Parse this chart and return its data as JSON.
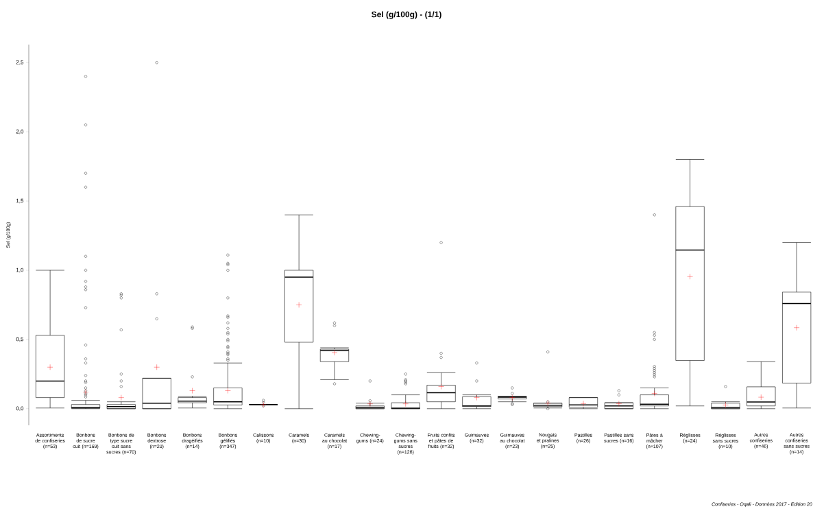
{
  "chart_data": {
    "type": "box",
    "title": "Sel (g/100g) - (1/1)",
    "ylabel": "Sel (g/100g)",
    "categories": [
      "Assortiments de confiseries (n=53)",
      "Bonbons de sucre cuit (n=169)",
      "Bonbons de type sucre cuit sans sucres (n=70)",
      "Bonbons dextrose (n=20)",
      "Bonbons dragéifiés (n=14)",
      "Bonbons gélifiés (n=347)",
      "Calissons (n=10)",
      "Caramels (n=30)",
      "Caramels au chocolat (n=17)",
      "Chewing-gums (n=24)",
      "Chewing-gums sans sucres (n=126)",
      "Fruits confits et pâtes de fruits (n=32)",
      "Guimauves (n=32)",
      "Guimauves au chocolat (n=23)",
      "Nougats et pralines (n=25)",
      "Pastilles (n=26)",
      "Pastilles sans sucres (n=16)",
      "Pâtes à mâcher (n=107)",
      "Réglisses (n=24)",
      "Réglisses sans sucres (n=10)",
      "Autres confiseries (n=46)",
      "Autres confiseries sans sucres (n=14)"
    ],
    "color": "#000000",
    "boxes": [
      {
        "low": 0.005,
        "q1": 0.08,
        "median": 0.2,
        "q3": 0.53,
        "high": 1.0,
        "mean": 0.3
      },
      {
        "low": 0.0,
        "q1": 0.003,
        "median": 0.01,
        "q3": 0.03,
        "high": 0.06,
        "mean": 0.12,
        "outliers": [
          2.4,
          2.05,
          1.7,
          1.6,
          1.1,
          1.0,
          0.92,
          0.88,
          0.86,
          0.73,
          0.46,
          0.36,
          0.33,
          0.24,
          0.2,
          0.19,
          0.15,
          0.13,
          0.11,
          0.1,
          0.085
        ]
      },
      {
        "low": 0.0,
        "q1": 0.0,
        "median": 0.015,
        "q3": 0.03,
        "high": 0.05,
        "mean": 0.08,
        "outliers": [
          0.83,
          0.82,
          0.8,
          0.57,
          0.25,
          0.2,
          0.16
        ]
      },
      {
        "low": 0.0,
        "q1": 0.0,
        "median": 0.04,
        "q3": 0.22,
        "high": 0.22,
        "mean": 0.3,
        "outliers": [
          2.5,
          0.83,
          0.65
        ]
      },
      {
        "low": 0.005,
        "q1": 0.043,
        "median": 0.055,
        "q3": 0.08,
        "high": 0.09,
        "mean": 0.13,
        "outliers": [
          0.59,
          0.58,
          0.23
        ]
      },
      {
        "low": 0.0,
        "q1": 0.027,
        "median": 0.05,
        "q3": 0.15,
        "high": 0.33,
        "mean": 0.13,
        "outliers": [
          1.11,
          1.05,
          1.04,
          1.0,
          0.8,
          0.67,
          0.66,
          0.62,
          0.58,
          0.55,
          0.54,
          0.5,
          0.49,
          0.45,
          0.44,
          0.41,
          0.4,
          0.39,
          0.36,
          0.35
        ]
      },
      {
        "low": 0.03,
        "q1": 0.03,
        "median": 0.03,
        "q3": 0.03,
        "high": 0.03,
        "mean": 0.03,
        "outliers": [
          0.06,
          0.045,
          0.02
        ]
      },
      {
        "low": 0.0,
        "q1": 0.48,
        "median": 0.95,
        "q3": 1.0,
        "high": 1.4,
        "mean": 0.75
      },
      {
        "low": 0.21,
        "q1": 0.34,
        "median": 0.42,
        "q3": 0.43,
        "high": 0.44,
        "mean": 0.405,
        "outliers": [
          0.62,
          0.6,
          0.18
        ]
      },
      {
        "low": 0.0,
        "q1": 0.0,
        "median": 0.01,
        "q3": 0.02,
        "high": 0.04,
        "mean": 0.035,
        "outliers": [
          0.2,
          0.057
        ]
      },
      {
        "low": 0.0,
        "q1": 0.0,
        "median": 0.004,
        "q3": 0.043,
        "high": 0.1,
        "mean": 0.035,
        "outliers": [
          0.25,
          0.21,
          0.2,
          0.19,
          0.18
        ]
      },
      {
        "low": 0.0,
        "q1": 0.05,
        "median": 0.115,
        "q3": 0.17,
        "high": 0.26,
        "mean": 0.16,
        "outliers": [
          1.2,
          0.4,
          0.37
        ]
      },
      {
        "low": 0.0,
        "q1": 0.015,
        "median": 0.02,
        "q3": 0.087,
        "high": 0.1,
        "mean": 0.08,
        "outliers": [
          0.33,
          0.2
        ]
      },
      {
        "low": 0.05,
        "q1": 0.07,
        "median": 0.083,
        "q3": 0.09,
        "high": 0.09,
        "mean": 0.08,
        "outliers": [
          0.15,
          0.11,
          0.037,
          0.03
        ]
      },
      {
        "low": 0.005,
        "q1": 0.015,
        "median": 0.025,
        "q3": 0.04,
        "high": 0.04,
        "mean": 0.04,
        "outliers": [
          0.41,
          0.05,
          0.0
        ]
      },
      {
        "low": 0.0,
        "q1": 0.01,
        "median": 0.027,
        "q3": 0.08,
        "high": 0.08,
        "mean": 0.037
      },
      {
        "low": 0.0,
        "q1": 0.0,
        "median": 0.02,
        "q3": 0.043,
        "high": 0.043,
        "mean": 0.037,
        "outliers": [
          0.13,
          0.1
        ]
      },
      {
        "low": 0.0,
        "q1": 0.02,
        "median": 0.032,
        "q3": 0.1,
        "high": 0.15,
        "mean": 0.11,
        "outliers": [
          1.4,
          0.55,
          0.53,
          0.5,
          0.305,
          0.29,
          0.275,
          0.26,
          0.245,
          0.23
        ]
      },
      {
        "low": 0.02,
        "q1": 0.348,
        "median": 1.146,
        "q3": 1.46,
        "high": 1.8,
        "mean": 0.954
      },
      {
        "low": 0.0,
        "q1": 0.0,
        "median": 0.01,
        "q3": 0.04,
        "high": 0.05,
        "mean": 0.027,
        "outliers": [
          0.16
        ]
      },
      {
        "low": 0.0,
        "q1": 0.02,
        "median": 0.048,
        "q3": 0.158,
        "high": 0.34,
        "mean": 0.083
      },
      {
        "low": 0.005,
        "q1": 0.185,
        "median": 0.76,
        "q3": 0.842,
        "high": 1.2,
        "mean": 0.585
      }
    ],
    "ylim": [
      -0.12,
      2.63
    ],
    "yticks": [
      {
        "value": 0,
        "label": "0,0"
      },
      {
        "value": 0.5,
        "label": "0,5"
      },
      {
        "value": 1,
        "label": "1,0"
      },
      {
        "value": 1.5,
        "label": "1,5"
      },
      {
        "value": 2,
        "label": "2,0"
      },
      {
        "value": 2.5,
        "label": "2,5"
      }
    ],
    "annotations": [
      "Confiseries - Oqali - Données 2017 - Edition 20"
    ]
  }
}
